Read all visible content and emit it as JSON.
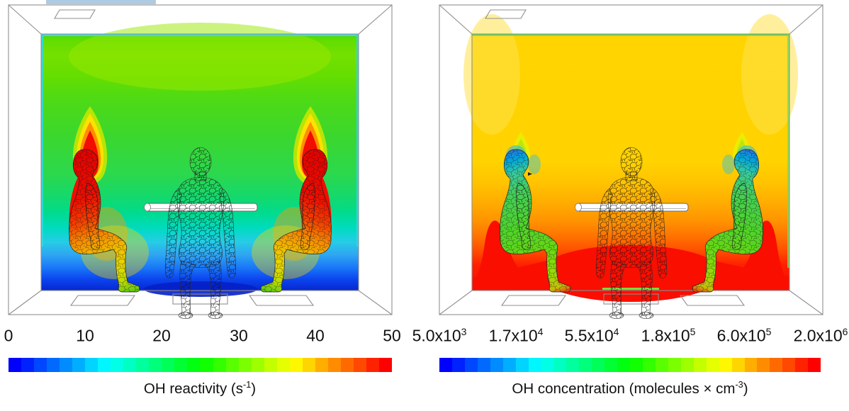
{
  "figure": {
    "description": "Two CFD room cross-section contour panels: left shows OH reactivity field, right shows OH concentration field. Each room contains two seated manikins facing a central standing wireframe manikin at a table, with ceiling and floor vents.",
    "artifacts": {
      "selection_bar_color": "#AECBE2"
    }
  },
  "panels": [
    {
      "id": "oh-reactivity",
      "caption": {
        "pre": "OH reactivity (s",
        "sup": "-1",
        "post": ")"
      },
      "ticks": [
        {
          "base": "0"
        },
        {
          "base": "10"
        },
        {
          "base": "20"
        },
        {
          "base": "30"
        },
        {
          "base": "40"
        },
        {
          "base": "50"
        }
      ]
    },
    {
      "id": "oh-concentration",
      "caption": {
        "pre": "OH concentration (molecules × cm",
        "sup": "-3",
        "post": ")"
      },
      "ticks": [
        {
          "base": "5.0x10",
          "sup": "3"
        },
        {
          "base": "1.7x10",
          "sup": "4"
        },
        {
          "base": "5.5x10",
          "sup": "4"
        },
        {
          "base": "1.8x10",
          "sup": "5"
        },
        {
          "base": "6.0x10",
          "sup": "5"
        },
        {
          "base": "2.0x10",
          "sup": "6"
        }
      ]
    }
  ],
  "colorbar": {
    "n_segments": 30,
    "colors": [
      "hsl(240,100%,50%)",
      "hsl(232,100%,50%)",
      "hsl(223,100%,50%)",
      "hsl(215,100%,50%)",
      "hsl(207,100%,50%)",
      "hsl(199,100%,50%)",
      "hsl(190,100%,50%)",
      "hsl(182,100%,50%)",
      "hsl(174,100%,50%)",
      "hsl(166,100%,50%)",
      "hsl(157,100%,50%)",
      "hsl(149,100%,50%)",
      "hsl(141,100%,50%)",
      "hsl(132,100%,50%)",
      "hsl(124,100%,50%)",
      "hsl(116,100%,50%)",
      "hsl(108,100%,50%)",
      "hsl(99,100%,50%)",
      "hsl(91,100%,50%)",
      "hsl(83,100%,50%)",
      "hsl(74,100%,50%)",
      "hsl(66,100%,50%)",
      "hsl(58,100%,50%)",
      "hsl(50,100%,50%)",
      "hsl(41,100%,50%)",
      "hsl(33,100%,50%)",
      "hsl(25,100%,50%)",
      "hsl(17,100%,50%)",
      "hsl(8,100%,50%)",
      "hsl(0,100%,50%)"
    ]
  },
  "palette": {
    "rainbow_start": "#0000FF",
    "rainbow_end": "#FF0000",
    "left_field_top_green": "#66DE00",
    "left_field_bottom_blue": "#0626D2",
    "left_plume_red": "#F30C00",
    "right_field_top_yellow": "#FFD400",
    "right_field_bottom_red": "#F60C00",
    "right_manikin_green": "#4ED32A"
  },
  "chart_data": [
    {
      "type": "heatmap",
      "title": "OH reactivity (s⁻¹)",
      "colorbar_ticks": [
        0,
        10,
        20,
        30,
        40,
        50
      ],
      "range": [
        0,
        50
      ],
      "scale": "linear",
      "colorbar_n_segments": 30,
      "legend_position": "horizontal bar below panel",
      "scene": "Room cross-section; field mostly green (~20-25 s⁻¹) in upper two-thirds, grading through cyan (~12) to deep blue (~2) at floor; red plumes (~50) rise above the heads of two red/orange seated manikins; central standing manikin shown as uncolored wireframe at a white table."
    },
    {
      "type": "heatmap",
      "title": "OH concentration (molecules × cm⁻³)",
      "colorbar_ticks_text": [
        "5.0x10^3",
        "1.7x10^4",
        "5.5x10^4",
        "1.8x10^5",
        "6.0x10^5",
        "2.0x10^6"
      ],
      "colorbar_ticks_numeric": [
        5000,
        17000,
        55000,
        180000,
        600000,
        2000000
      ],
      "range": [
        5000,
        2000000
      ],
      "scale": "log",
      "colorbar_n_segments": 30,
      "legend_position": "horizontal bar below panel",
      "scene": "Same room; field yellow (~6x10^5) in upper two-thirds grading through orange to red (~2x10^6) near the floor and behind the seated manikins; seated manikins colored green with cyan-blue heads and small yellow-green plumes; central standing manikin wireframe at table."
    }
  ]
}
